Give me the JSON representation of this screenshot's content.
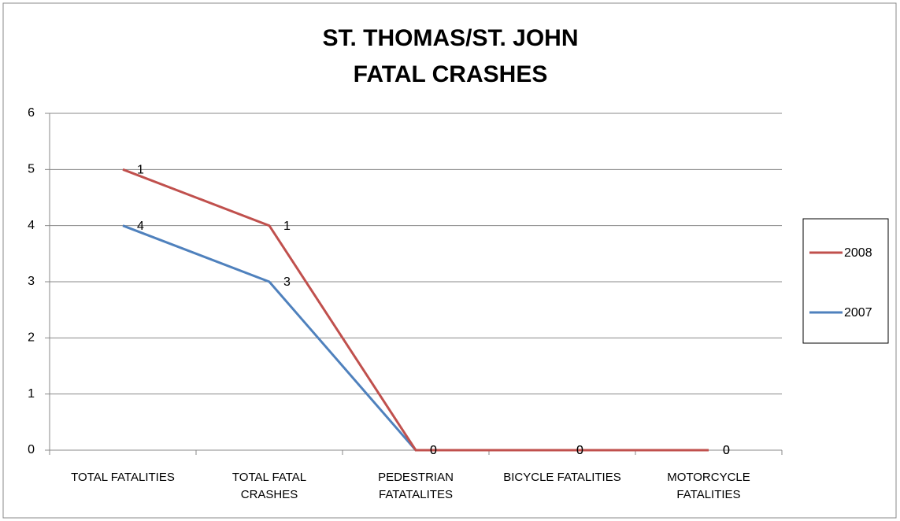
{
  "chart_data": {
    "type": "line",
    "stacked": true,
    "title": [
      "ST. THOMAS/ST. JOHN",
      "FATAL CRASHES"
    ],
    "categories": [
      "TOTAL FATALITIES",
      "TOTAL FATAL\nCRASHES",
      "PEDESTRIAN\nFATATALITES",
      "BICYCLE FATALITIES",
      "MOTORCYCLE\nFATALITIES"
    ],
    "series": [
      {
        "name": "2007",
        "color": "#4f81bd",
        "values": [
          4,
          3,
          0,
          0,
          0
        ]
      },
      {
        "name": "2008",
        "color": "#c0504d",
        "values": [
          1,
          1,
          0,
          0,
          0
        ]
      }
    ],
    "ylim": [
      0,
      6
    ],
    "yticks": [
      0,
      1,
      2,
      3,
      4,
      5,
      6
    ],
    "grid": true,
    "legend": "right"
  }
}
